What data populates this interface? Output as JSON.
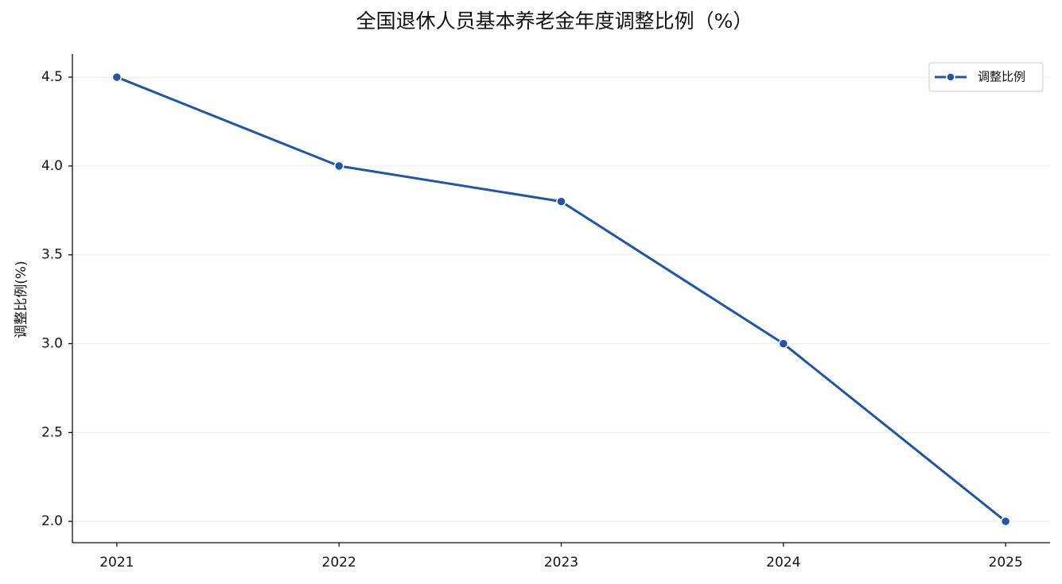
{
  "chart_data": {
    "type": "line",
    "title": "全国退休人员基本养老金年度调整比例（%）",
    "y_label": "调整比例(%)",
    "x": [
      2021,
      2022,
      2023,
      2024,
      2025
    ],
    "series": [
      {
        "name": "调整比例",
        "color": "#1f56a8",
        "values": [
          4.5,
          4.0,
          3.8,
          3.0,
          2.0
        ]
      }
    ],
    "xlim": [
      2020.8,
      2025.2
    ],
    "xticks": [
      2021,
      2022,
      2023,
      2024,
      2025
    ],
    "ylim": [
      1.88,
      4.63
    ],
    "yticks": [
      {
        "value": 2.0,
        "label": "2.0"
      },
      {
        "value": 2.5,
        "label": "2.5"
      },
      {
        "value": 3.0,
        "label": "3.0"
      },
      {
        "value": 3.5,
        "label": "3.5"
      },
      {
        "value": 4.0,
        "label": "4.0"
      },
      {
        "value": 4.5,
        "label": "4.5"
      }
    ],
    "grid": true,
    "legend": "upper right"
  }
}
